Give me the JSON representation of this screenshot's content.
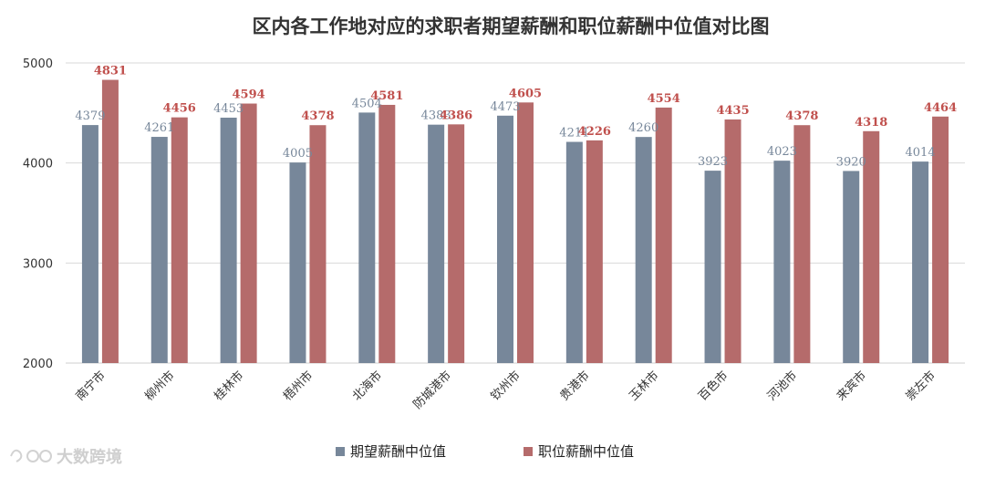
{
  "chart_data": {
    "type": "bar",
    "title": "区内各工作地对应的求职者期望薪酬和职位薪酬中位值对比图",
    "categories": [
      "南宁市",
      "柳州市",
      "桂林市",
      "梧州市",
      "北海市",
      "防城港市",
      "钦州市",
      "贵港市",
      "玉林市",
      "百色市",
      "河池市",
      "来宾市",
      "崇左市"
    ],
    "series": [
      {
        "name": "期望薪酬中位值",
        "color": "#77879a",
        "values": [
          4379,
          4261,
          4453,
          4005,
          4504,
          4383,
          4473,
          4211,
          4260,
          3923,
          4023,
          3920,
          4014
        ]
      },
      {
        "name": "职位薪酬中位值",
        "color": "#b56b6b",
        "values": [
          4831,
          4456,
          4594,
          4378,
          4581,
          4386,
          4605,
          4226,
          4554,
          4435,
          4378,
          4318,
          4464
        ]
      }
    ],
    "ylim": [
      2000,
      5000
    ],
    "yticks": [
      2000,
      3000,
      4000,
      5000
    ],
    "grid": true,
    "legend_position": "bottom"
  },
  "watermark": {
    "text": "大数跨境"
  }
}
